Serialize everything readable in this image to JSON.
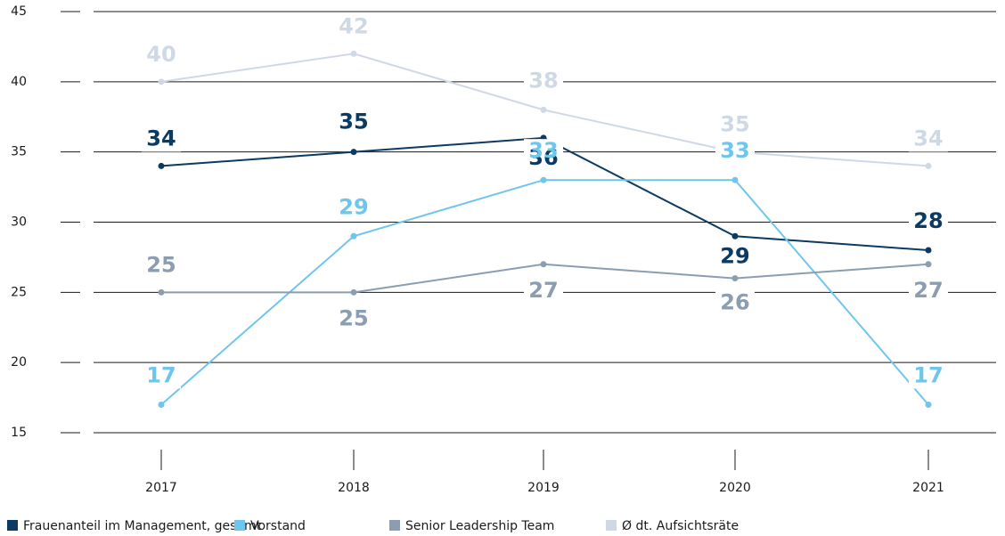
{
  "chart_data": {
    "type": "line",
    "categories": [
      "2017",
      "2018",
      "2019",
      "2020",
      "2021"
    ],
    "series": [
      {
        "name": "Frauenanteil im Management, gesamt",
        "color": "#0b3a63",
        "values": [
          34,
          35,
          36,
          29,
          28
        ]
      },
      {
        "name": "Vorstand",
        "color": "#6ec6ec",
        "values": [
          17,
          29,
          33,
          33,
          17
        ]
      },
      {
        "name": "Senior Leadership Team",
        "color": "#8b9eb1",
        "values": [
          25,
          25,
          27,
          26,
          27
        ]
      },
      {
        "name": "Ø dt. Aufsichtsräte",
        "color": "#cfd9e6",
        "values": [
          40,
          42,
          38,
          35,
          34
        ]
      }
    ],
    "ylim": [
      15,
      45
    ],
    "yticks": [
      15,
      20,
      25,
      30,
      35,
      40,
      45
    ],
    "grid": true,
    "legend": "bottom"
  }
}
